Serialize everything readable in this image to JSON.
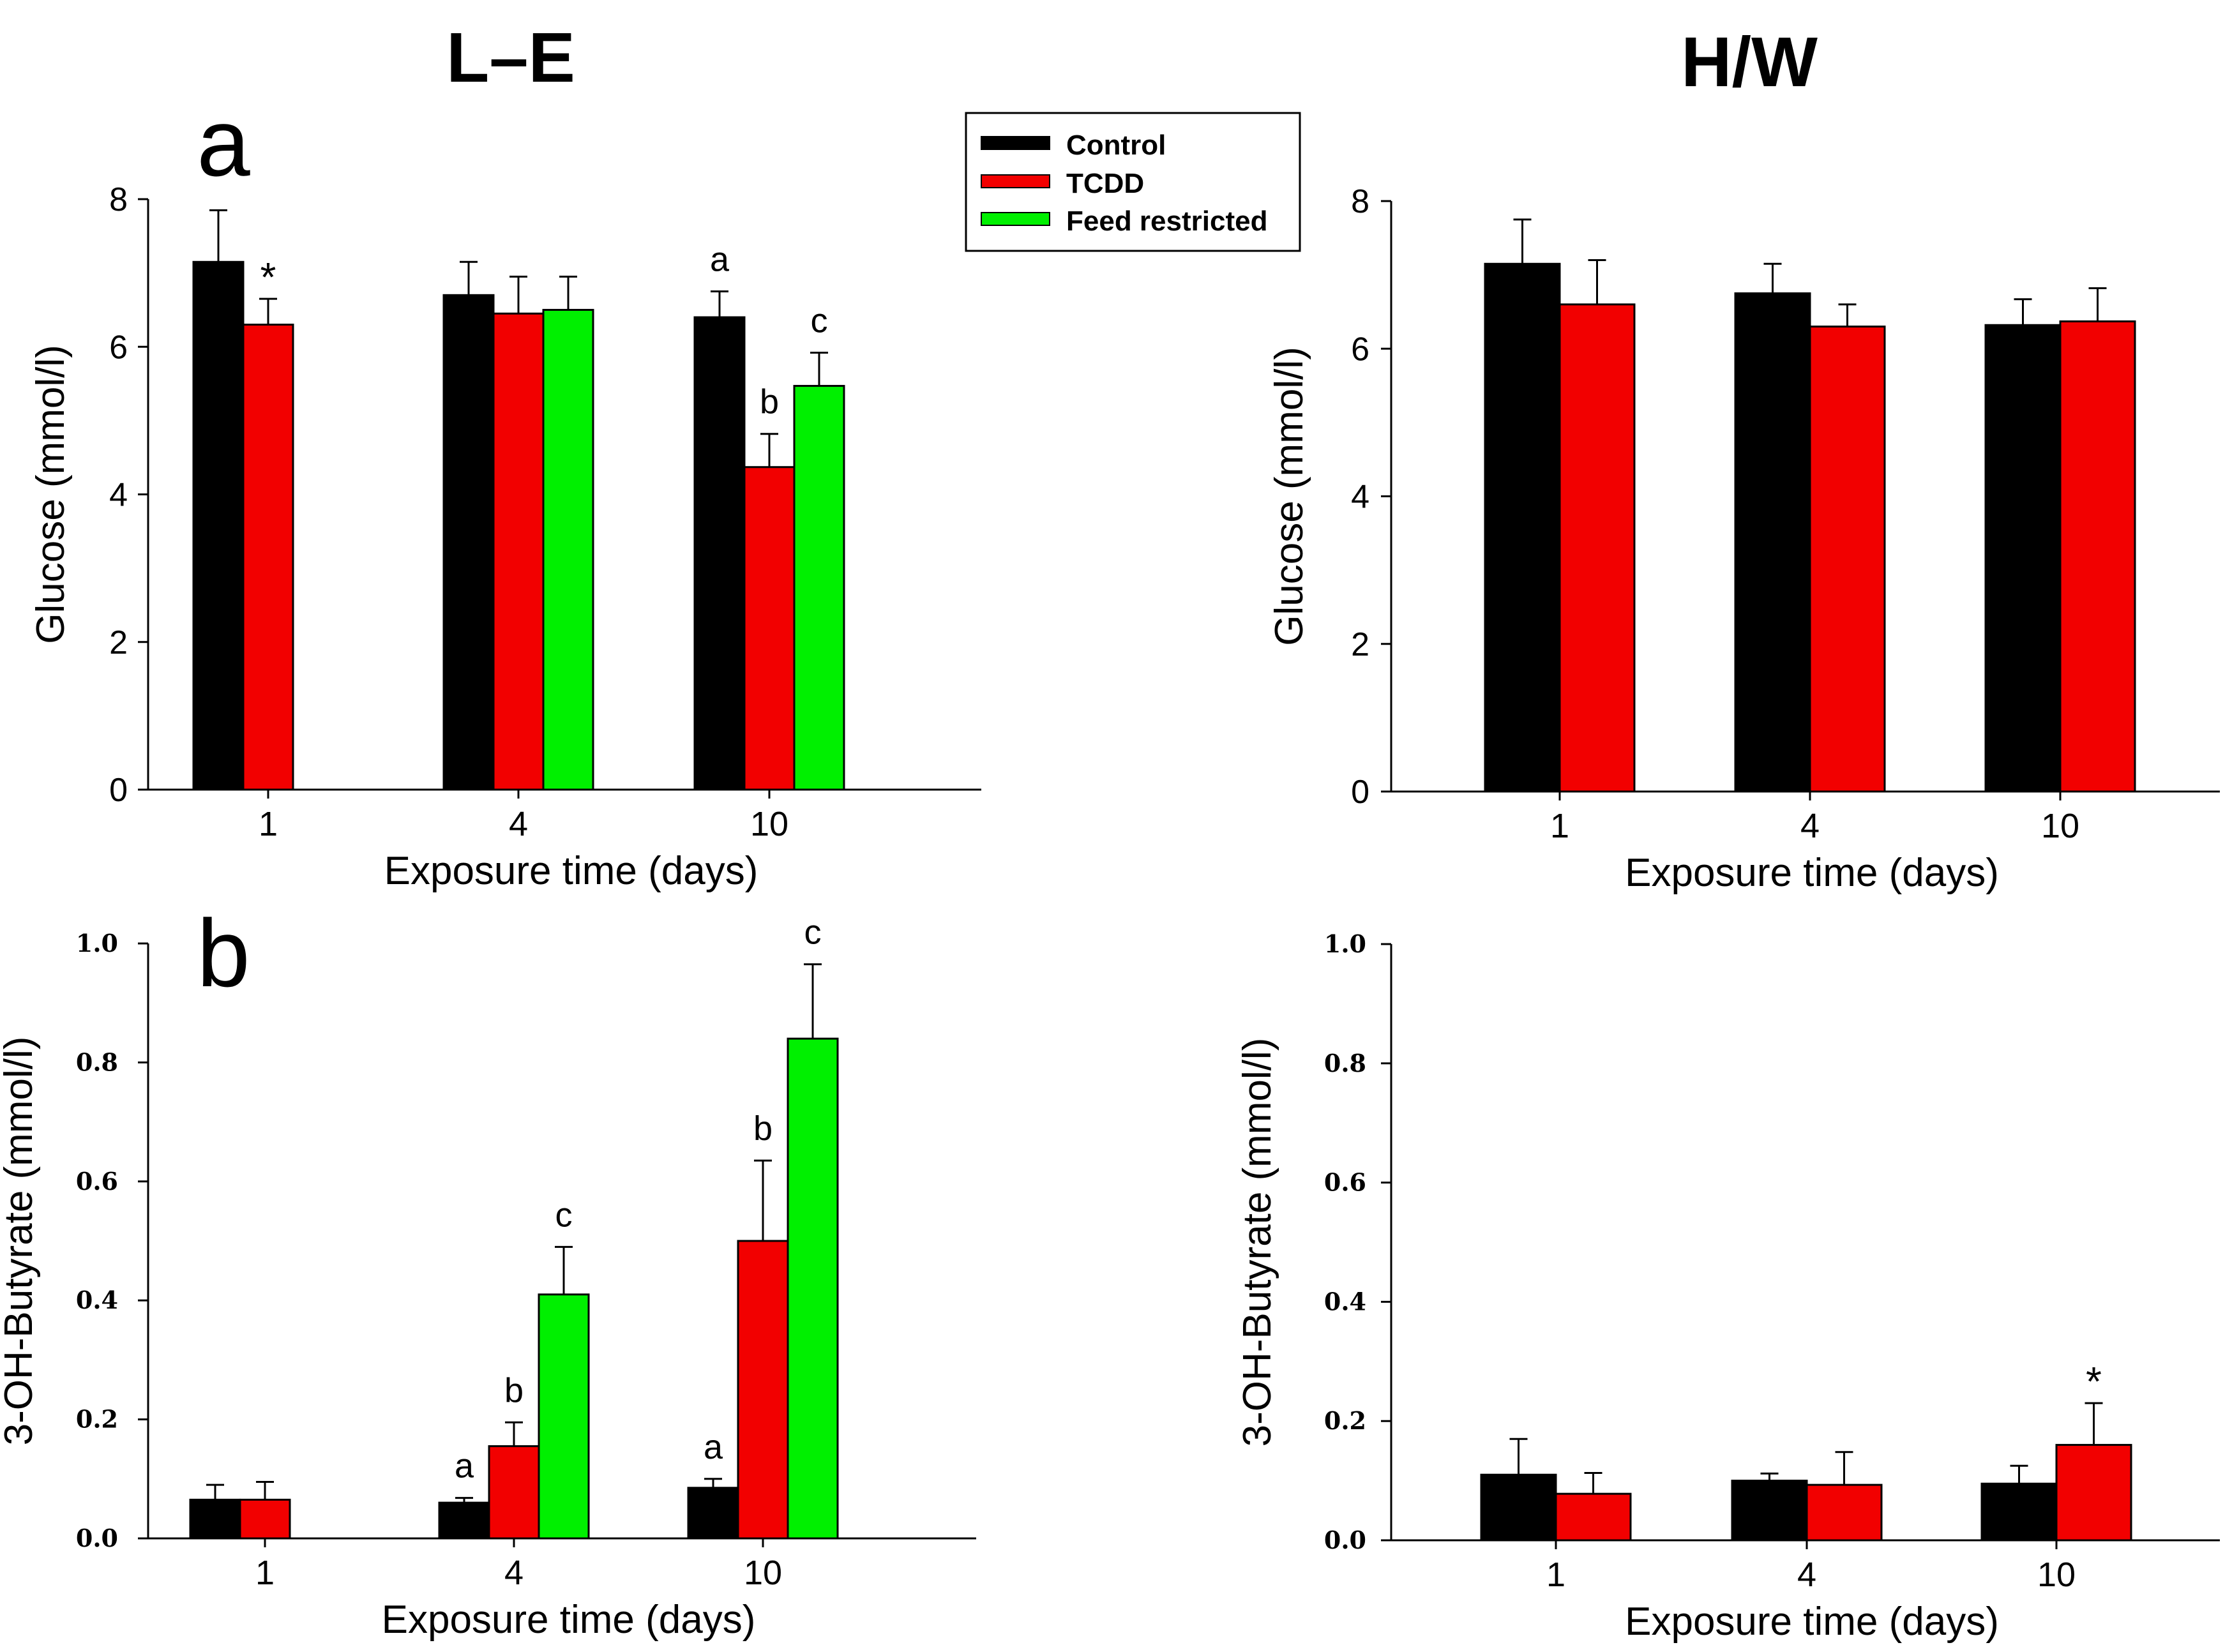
{
  "colors": {
    "control": "#000000",
    "tcdd": "#f20000",
    "feed_restricted": "#00f000",
    "axis": "#000000"
  },
  "column_titles": {
    "left": "L–E",
    "right": "H/W"
  },
  "panel_letters": {
    "top": "a",
    "bottom": "b"
  },
  "legend": {
    "items": [
      {
        "label": "Control",
        "color": "#000000"
      },
      {
        "label": "TCDD",
        "color": "#f20000"
      },
      {
        "label": "Feed restricted",
        "color": "#00f000"
      }
    ]
  },
  "chart_data": [
    {
      "id": "glucose_le",
      "type": "bar",
      "title": "L–E",
      "xlabel": "Exposure time (days)",
      "ylabel": "Glucose (mmol/l)",
      "ylim": [
        0,
        8
      ],
      "yticks": [
        "0",
        "2",
        "4",
        "6",
        "8"
      ],
      "categories": [
        "1",
        "4",
        "10"
      ],
      "series": [
        {
          "name": "Control",
          "values": [
            7.15,
            6.7,
            6.4
          ],
          "errors": [
            0.7,
            0.45,
            0.35
          ]
        },
        {
          "name": "TCDD",
          "values": [
            6.3,
            6.45,
            4.37
          ],
          "errors": [
            0.35,
            0.5,
            0.45
          ]
        },
        {
          "name": "Feed restricted",
          "values": [
            null,
            6.5,
            5.47
          ],
          "errors": [
            null,
            0.45,
            0.45
          ]
        }
      ],
      "annotations": [
        {
          "category": "1",
          "series": "TCDD",
          "text": "*"
        },
        {
          "category": "10",
          "series": "Control",
          "text": "a"
        },
        {
          "category": "10",
          "series": "TCDD",
          "text": "b"
        },
        {
          "category": "10",
          "series": "Feed restricted",
          "text": "c"
        }
      ]
    },
    {
      "id": "glucose_hw",
      "type": "bar",
      "title": "H/W",
      "xlabel": "Exposure time (days)",
      "ylabel": "Glucose (mmol/l)",
      "ylim": [
        0,
        8
      ],
      "yticks": [
        "0",
        "2",
        "4",
        "6",
        "8"
      ],
      "categories": [
        "1",
        "4",
        "10"
      ],
      "series": [
        {
          "name": "Control",
          "values": [
            7.15,
            6.75,
            6.32
          ],
          "errors": [
            0.6,
            0.4,
            0.35
          ]
        },
        {
          "name": "TCDD",
          "values": [
            6.6,
            6.3,
            6.37
          ],
          "errors": [
            0.6,
            0.3,
            0.45
          ]
        }
      ],
      "annotations": []
    },
    {
      "id": "butyrate_le",
      "type": "bar",
      "xlabel": "Exposure time (days)",
      "ylabel": "3-OH-Butyrate (mmol/l)",
      "ylim": [
        0,
        1.0
      ],
      "yticks": [
        "0.0",
        "0.2",
        "0.4",
        "0.6",
        "0.8",
        "1.0"
      ],
      "categories": [
        "1",
        "4",
        "10"
      ],
      "series": [
        {
          "name": "Control",
          "values": [
            0.065,
            0.06,
            0.085
          ],
          "errors": [
            0.025,
            0.008,
            0.015
          ]
        },
        {
          "name": "TCDD",
          "values": [
            0.065,
            0.155,
            0.5
          ],
          "errors": [
            0.03,
            0.04,
            0.135
          ]
        },
        {
          "name": "Feed restricted",
          "values": [
            null,
            0.41,
            0.84
          ],
          "errors": [
            null,
            0.08,
            0.125
          ]
        }
      ],
      "annotations": [
        {
          "category": "4",
          "series": "Control",
          "text": "a"
        },
        {
          "category": "4",
          "series": "TCDD",
          "text": "b"
        },
        {
          "category": "4",
          "series": "Feed restricted",
          "text": "c"
        },
        {
          "category": "10",
          "series": "Control",
          "text": "a"
        },
        {
          "category": "10",
          "series": "TCDD",
          "text": "b"
        },
        {
          "category": "10",
          "series": "Feed restricted",
          "text": "c"
        }
      ]
    },
    {
      "id": "butyrate_hw",
      "type": "bar",
      "xlabel": "Exposure time (days)",
      "ylabel": "3-OH-Butyrate (mmol/l)",
      "ylim": [
        0,
        1.0
      ],
      "yticks": [
        "0.0",
        "0.2",
        "0.4",
        "0.6",
        "0.8",
        "1.0"
      ],
      "categories": [
        "1",
        "4",
        "10"
      ],
      "series": [
        {
          "name": "Control",
          "values": [
            0.11,
            0.1,
            0.095
          ],
          "errors": [
            0.06,
            0.012,
            0.03
          ]
        },
        {
          "name": "TCDD",
          "values": [
            0.078,
            0.093,
            0.16
          ],
          "errors": [
            0.035,
            0.055,
            0.07
          ]
        }
      ],
      "annotations": [
        {
          "category": "10",
          "series": "TCDD",
          "text": "*"
        }
      ]
    }
  ]
}
